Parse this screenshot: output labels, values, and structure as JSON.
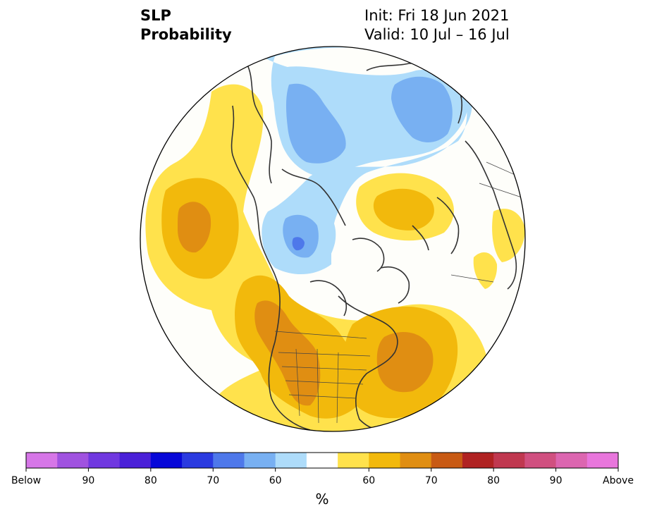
{
  "title": {
    "variable": "SLP",
    "product": "Probability",
    "init": "Init: Fri 18 Jun 2021",
    "valid": "Valid: 10 Jul – 16 Jul"
  },
  "colorbar": {
    "colors": [
      "#d676e7",
      "#a052e0",
      "#7038e0",
      "#4a20d8",
      "#0808d8",
      "#2a3ae0",
      "#4e78ea",
      "#78b0f2",
      "#aedcfa",
      "#ffffff",
      "#ffe24c",
      "#f2b90c",
      "#e08e12",
      "#c85a14",
      "#b02222",
      "#c03850",
      "#d05080",
      "#dc66b0",
      "#e876dc"
    ],
    "tick_labels": [
      "Below",
      "90",
      "80",
      "70",
      "60",
      "60",
      "70",
      "80",
      "90",
      "Above"
    ],
    "unit": "%"
  },
  "map": {
    "projection": "north-polar-stereographic",
    "colors": {
      "blue_light": "#aedcfa",
      "blue_mid": "#78b0f2",
      "blue_dark": "#4e78ea",
      "blue_deep": "#2a3ae0",
      "yellow": "#ffe24c",
      "gold": "#f2b90c",
      "orange": "#e08e12",
      "ocean_bg": "#fefefa",
      "coast": "#333333"
    }
  }
}
